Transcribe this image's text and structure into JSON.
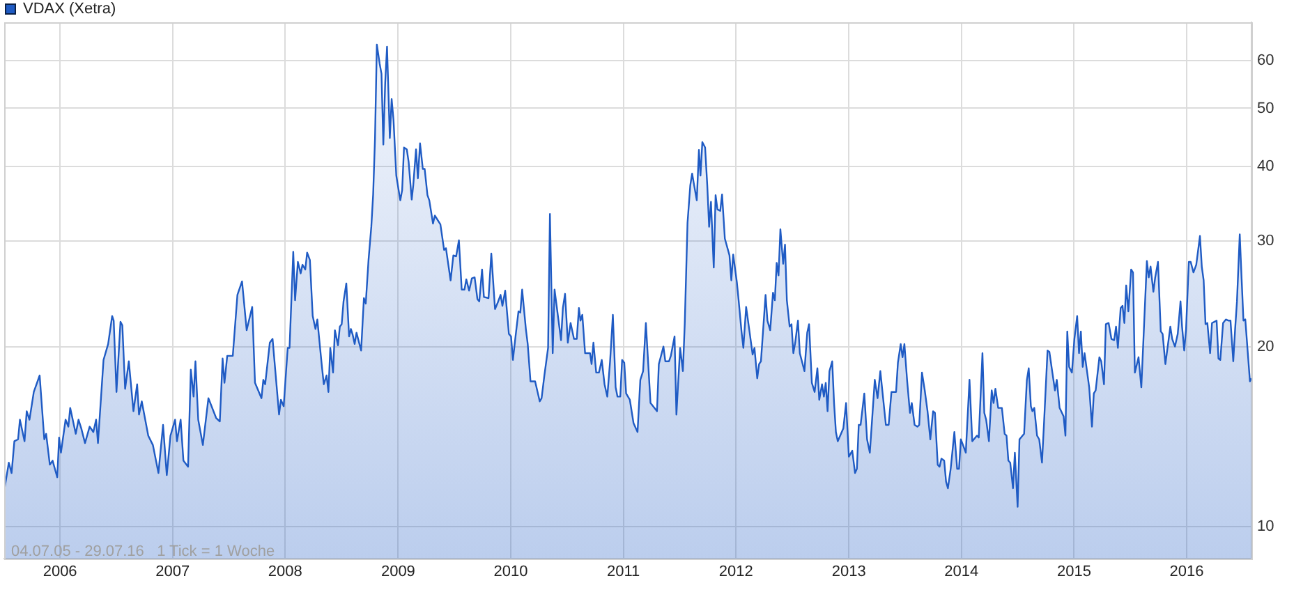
{
  "chart_data": {
    "type": "area",
    "x": [
      "2005-07-04",
      "2005-07-19",
      "2005-07-28",
      "2005-08-06",
      "2005-08-18",
      "2005-08-24",
      "2005-09-08",
      "2005-09-15",
      "2005-09-24",
      "2005-10-08",
      "2005-10-27",
      "2005-11-11",
      "2005-11-17",
      "2005-11-29",
      "2005-12-08",
      "2005-12-23",
      "2005-12-29",
      "2006-01-04",
      "2006-01-19",
      "2006-01-28",
      "2006-02-03",
      "2006-02-21",
      "2006-03-02",
      "2006-03-11",
      "2006-03-23",
      "2006-04-07",
      "2006-04-19",
      "2006-04-28",
      "2006-05-04",
      "2006-05-22",
      "2006-06-06",
      "2006-06-19",
      "2006-06-24",
      "2006-07-03",
      "2006-07-16",
      "2006-07-22",
      "2006-07-31",
      "2006-08-12",
      "2006-08-27",
      "2006-09-08",
      "2006-09-14",
      "2006-09-23",
      "2006-10-14",
      "2006-10-29",
      "2006-11-16",
      "2006-12-01",
      "2006-12-13",
      "2006-12-25",
      "2007-01-09",
      "2007-01-15",
      "2007-01-27",
      "2007-02-05",
      "2007-02-20",
      "2007-03-01",
      "2007-03-10",
      "2007-03-16",
      "2007-03-25",
      "2007-04-09",
      "2007-04-27",
      "2007-05-22",
      "2007-06-03",
      "2007-06-12",
      "2007-06-18",
      "2007-06-27",
      "2007-07-15",
      "2007-07-30",
      "2007-08-14",
      "2007-08-29",
      "2007-09-16",
      "2007-09-25",
      "2007-10-16",
      "2007-10-22",
      "2007-10-28",
      "2007-11-12",
      "2007-11-21",
      "2007-12-12",
      "2007-12-18",
      "2007-12-27",
      "2008-01-09",
      "2008-01-15",
      "2008-01-27",
      "2008-02-02",
      "2008-02-11",
      "2008-02-20",
      "2008-02-26",
      "2008-03-06",
      "2008-03-12",
      "2008-03-21",
      "2008-03-30",
      "2008-04-08",
      "2008-04-14",
      "2008-04-29",
      "2008-05-05",
      "2008-05-14",
      "2008-05-20",
      "2008-05-26",
      "2008-06-04",
      "2008-06-10",
      "2008-06-20",
      "2008-06-26",
      "2008-07-02",
      "2008-07-08",
      "2008-07-17",
      "2008-07-26",
      "2008-08-01",
      "2008-08-07",
      "2008-08-13",
      "2008-08-19",
      "2008-09-03",
      "2008-09-12",
      "2008-09-18",
      "2008-09-27",
      "2008-10-06",
      "2008-10-12",
      "2008-10-18",
      "2008-10-24",
      "2008-11-02",
      "2008-11-08",
      "2008-11-14",
      "2008-11-20",
      "2008-11-26",
      "2008-12-05",
      "2008-12-11",
      "2008-12-17",
      "2008-12-26",
      "2009-01-08",
      "2009-01-14",
      "2009-01-20",
      "2009-01-29",
      "2009-02-04",
      "2009-02-14",
      "2009-02-19",
      "2009-02-28",
      "2009-03-06",
      "2009-03-13",
      "2009-03-22",
      "2009-03-28",
      "2009-04-06",
      "2009-04-12",
      "2009-04-24",
      "2009-04-30",
      "2009-05-18",
      "2009-05-30",
      "2009-06-05",
      "2009-06-20",
      "2009-06-29",
      "2009-07-08",
      "2009-07-17",
      "2009-07-26",
      "2009-08-04",
      "2009-08-10",
      "2009-08-19",
      "2009-08-28",
      "2009-09-06",
      "2009-09-15",
      "2009-09-21",
      "2009-09-30",
      "2009-10-06",
      "2009-10-21",
      "2009-10-30",
      "2009-11-11",
      "2009-11-20",
      "2009-11-29",
      "2009-12-05",
      "2009-12-14",
      "2009-12-26",
      "2010-01-02",
      "2010-01-08",
      "2010-01-17",
      "2010-01-26",
      "2010-02-01",
      "2010-02-07",
      "2010-02-19",
      "2010-02-25",
      "2010-03-06",
      "2010-03-21",
      "2010-04-05",
      "2010-04-11",
      "2010-04-20",
      "2010-05-02",
      "2010-05-08",
      "2010-05-17",
      "2010-05-23",
      "2010-06-13",
      "2010-06-19",
      "2010-06-26",
      "2010-07-05",
      "2010-07-14",
      "2010-07-25",
      "2010-08-03",
      "2010-08-10",
      "2010-08-15",
      "2010-08-21",
      "2010-08-30",
      "2010-09-15",
      "2010-09-20",
      "2010-09-26",
      "2010-10-05",
      "2010-10-14",
      "2010-10-23",
      "2010-11-01",
      "2010-11-10",
      "2010-11-19",
      "2010-11-28",
      "2010-12-07",
      "2010-12-13",
      "2010-12-22",
      "2010-12-28",
      "2011-01-04",
      "2011-01-10",
      "2011-01-22",
      "2011-02-03",
      "2011-02-16",
      "2011-02-25",
      "2011-03-06",
      "2011-03-15",
      "2011-03-30",
      "2011-04-20",
      "2011-04-26",
      "2011-05-11",
      "2011-05-17",
      "2011-05-29",
      "2011-06-04",
      "2011-06-16",
      "2011-06-22",
      "2011-07-04",
      "2011-07-13",
      "2011-07-19",
      "2011-07-28",
      "2011-08-06",
      "2011-08-12",
      "2011-08-18",
      "2011-08-27",
      "2011-09-03",
      "2011-09-08",
      "2011-09-14",
      "2011-09-23",
      "2011-09-30",
      "2011-10-06",
      "2011-10-12",
      "2011-10-21",
      "2011-10-27",
      "2011-11-02",
      "2011-11-11",
      "2011-11-17",
      "2011-11-26",
      "2011-12-11",
      "2011-12-17",
      "2011-12-23",
      "2012-01-04",
      "2012-01-10",
      "2012-01-19",
      "2012-01-25",
      "2012-02-03",
      "2012-02-15",
      "2012-02-24",
      "2012-03-01",
      "2012-03-10",
      "2012-03-16",
      "2012-03-22",
      "2012-04-06",
      "2012-04-12",
      "2012-04-21",
      "2012-04-30",
      "2012-05-06",
      "2012-05-12",
      "2012-05-18",
      "2012-05-24",
      "2012-06-02",
      "2012-06-08",
      "2012-06-14",
      "2012-06-23",
      "2012-06-29",
      "2012-07-05",
      "2012-07-11",
      "2012-07-20",
      "2012-07-26",
      "2012-08-10",
      "2012-08-19",
      "2012-08-25",
      "2012-09-03",
      "2012-09-12",
      "2012-09-21",
      "2012-09-27",
      "2012-10-06",
      "2012-10-12",
      "2012-10-18",
      "2012-10-24",
      "2012-10-30",
      "2012-11-08",
      "2012-11-14",
      "2012-11-20",
      "2012-11-26",
      "2012-12-14",
      "2012-12-23",
      "2013-01-01",
      "2013-01-12",
      "2013-01-21",
      "2013-01-27",
      "2013-02-02",
      "2013-02-08",
      "2013-02-20",
      "2013-03-01",
      "2013-03-10",
      "2013-03-26",
      "2013-04-04",
      "2013-04-13",
      "2013-04-22",
      "2013-05-01",
      "2013-05-10",
      "2013-05-19",
      "2013-06-03",
      "2013-06-09",
      "2013-06-18",
      "2013-06-24",
      "2013-06-30",
      "2013-07-09",
      "2013-07-18",
      "2013-07-24",
      "2013-08-02",
      "2013-08-11",
      "2013-08-17",
      "2013-08-26",
      "2013-09-04",
      "2013-09-13",
      "2013-09-22",
      "2013-10-01",
      "2013-10-07",
      "2013-10-16",
      "2013-10-22",
      "2013-10-28",
      "2013-11-06",
      "2013-11-12",
      "2013-11-18",
      "2013-11-27",
      "2013-12-09",
      "2013-12-18",
      "2013-12-24",
      "2013-12-30",
      "2014-01-06",
      "2014-01-15",
      "2014-01-27",
      "2014-02-05",
      "2014-02-20",
      "2014-02-26",
      "2014-03-10",
      "2014-03-16",
      "2014-03-22",
      "2014-03-31",
      "2014-04-09",
      "2014-04-15",
      "2014-04-21",
      "2014-04-30",
      "2014-05-12",
      "2014-05-21",
      "2014-05-27",
      "2014-06-02",
      "2014-06-08",
      "2014-06-17",
      "2014-06-23",
      "2014-07-02",
      "2014-07-08",
      "2014-07-23",
      "2014-08-01",
      "2014-08-07",
      "2014-08-14",
      "2014-08-19",
      "2014-08-25",
      "2014-09-03",
      "2014-09-10",
      "2014-09-19",
      "2014-09-25",
      "2014-10-07",
      "2014-10-13",
      "2014-10-22",
      "2014-10-31",
      "2014-11-06",
      "2014-11-15",
      "2014-11-28",
      "2014-12-04",
      "2014-12-10",
      "2014-12-16",
      "2014-12-25",
      "2015-01-02",
      "2015-01-11",
      "2015-01-17",
      "2015-01-23",
      "2015-01-29",
      "2015-02-04",
      "2015-02-19",
      "2015-02-28",
      "2015-03-06",
      "2015-03-12",
      "2015-03-24",
      "2015-03-30",
      "2015-04-08",
      "2015-04-14",
      "2015-04-23",
      "2015-05-02",
      "2015-05-11",
      "2015-05-17",
      "2015-05-23",
      "2015-06-01",
      "2015-06-07",
      "2015-06-13",
      "2015-06-19",
      "2015-06-26",
      "2015-07-05",
      "2015-07-11",
      "2015-07-17",
      "2015-07-29",
      "2015-08-07",
      "2015-08-16",
      "2015-08-25",
      "2015-08-31",
      "2015-09-06",
      "2015-09-15",
      "2015-09-21",
      "2015-09-30",
      "2015-10-09",
      "2015-10-15",
      "2015-10-24",
      "2015-11-09",
      "2015-11-15",
      "2015-11-24",
      "2015-12-03",
      "2015-12-12",
      "2015-12-17",
      "2015-12-24",
      "2015-12-30",
      "2016-01-08",
      "2016-01-14",
      "2016-01-23",
      "2016-02-01",
      "2016-02-13",
      "2016-02-19",
      "2016-02-25",
      "2016-03-02",
      "2016-03-08",
      "2016-03-17",
      "2016-03-23",
      "2016-04-07",
      "2016-04-13",
      "2016-04-19",
      "2016-04-28",
      "2016-05-07",
      "2016-05-16",
      "2016-05-22",
      "2016-05-31",
      "2016-06-06",
      "2016-06-12",
      "2016-06-21",
      "2016-06-27",
      "2016-07-03",
      "2016-07-09",
      "2016-07-24",
      "2016-07-29"
    ],
    "series": [
      {
        "name": "VDAX (Xetra)",
        "color": "#1f5bc4",
        "values": [
          11.5,
          12.8,
          12.3,
          13.9,
          14.0,
          15.1,
          13.9,
          15.6,
          15.1,
          16.8,
          17.9,
          14.0,
          14.3,
          12.7,
          12.9,
          12.1,
          14.1,
          13.3,
          15.1,
          14.7,
          15.8,
          14.3,
          15.1,
          14.6,
          13.8,
          14.7,
          14.4,
          15.1,
          13.8,
          19.0,
          20.2,
          22.5,
          22.1,
          16.8,
          22.0,
          21.7,
          17.0,
          18.9,
          15.6,
          17.3,
          15.4,
          16.2,
          14.2,
          13.7,
          12.3,
          14.8,
          12.2,
          14.2,
          15.1,
          13.9,
          15.1,
          12.9,
          12.6,
          18.3,
          16.5,
          18.9,
          15.1,
          13.7,
          16.4,
          15.2,
          15.0,
          19.1,
          17.4,
          19.3,
          19.3,
          24.4,
          25.7,
          21.3,
          23.3,
          17.4,
          16.4,
          17.6,
          17.3,
          20.3,
          20.6,
          15.4,
          16.3,
          15.9,
          19.9,
          19.9,
          28.8,
          23.9,
          27.7,
          26.5,
          27.4,
          26.9,
          28.7,
          27.9,
          22.5,
          21.4,
          22.2,
          18.5,
          17.3,
          17.9,
          16.8,
          19.9,
          18.1,
          21.3,
          20.1,
          21.6,
          21.8,
          23.8,
          25.5,
          20.8,
          21.4,
          20.9,
          20.2,
          21.1,
          19.7,
          24.1,
          23.6,
          27.9,
          31.7,
          35.9,
          44.5,
          63.9,
          59.4,
          57.1,
          43.5,
          55.1,
          63.4,
          44.6,
          51.8,
          47.8,
          38.6,
          35.1,
          36.5,
          43.0,
          42.7,
          40.7,
          35.2,
          37.2,
          42.7,
          38.2,
          43.7,
          39.6,
          39.6,
          35.8,
          35.1,
          32.1,
          33.1,
          32.0,
          29.0,
          29.2,
          25.8,
          28.4,
          28.3,
          30.1,
          24.9,
          24.9,
          25.9,
          24.8,
          26.0,
          26.1,
          24.0,
          23.8,
          26.9,
          24.2,
          24.1,
          28.6,
          23.1,
          23.7,
          24.4,
          23.4,
          24.8,
          21.0,
          20.8,
          19.0,
          20.9,
          22.9,
          22.8,
          24.9,
          21.4,
          20.2,
          17.5,
          17.5,
          16.2,
          16.4,
          17.9,
          19.9,
          33.3,
          19.5,
          24.9,
          20.5,
          23.2,
          24.5,
          20.3,
          21.9,
          20.6,
          20.6,
          23.2,
          22.1,
          22.6,
          19.5,
          19.5,
          18.7,
          20.3,
          18.1,
          18.1,
          19.0,
          17.3,
          16.5,
          18.9,
          22.6,
          17.1,
          16.5,
          16.5,
          19.0,
          18.8,
          16.7,
          16.3,
          14.9,
          14.4,
          17.6,
          18.2,
          21.9,
          16.1,
          15.6,
          18.7,
          20.0,
          18.9,
          18.9,
          19.3,
          20.8,
          15.4,
          19.9,
          18.2,
          21.8,
          32.2,
          37.2,
          38.9,
          37.3,
          35.1,
          42.6,
          38.6,
          43.9,
          43.0,
          37.2,
          31.7,
          34.9,
          27.1,
          35.8,
          33.9,
          33.7,
          35.9,
          30.3,
          28.4,
          25.8,
          28.5,
          25.6,
          23.8,
          21.2,
          19.9,
          23.3,
          21.0,
          19.4,
          19.9,
          17.7,
          18.7,
          18.9,
          24.4,
          22.1,
          21.3,
          24.6,
          23.9,
          27.6,
          26.3,
          31.4,
          27.5,
          29.6,
          23.9,
          21.6,
          21.8,
          19.5,
          20.3,
          22.1,
          19.5,
          18.2,
          21.1,
          21.8,
          17.4,
          16.8,
          18.4,
          16.3,
          17.3,
          16.5,
          17.4,
          15.6,
          18.2,
          18.9,
          16.1,
          14.4,
          13.9,
          14.6,
          16.1,
          13.1,
          13.4,
          12.3,
          12.5,
          14.8,
          14.8,
          16.7,
          14.0,
          13.3,
          17.6,
          16.4,
          18.2,
          16.4,
          14.8,
          14.8,
          16.8,
          16.8,
          18.8,
          20.2,
          19.2,
          20.2,
          17.5,
          15.5,
          16.1,
          14.8,
          14.7,
          14.8,
          18.1,
          16.9,
          15.6,
          14.0,
          15.6,
          15.5,
          12.7,
          12.6,
          13.0,
          12.9,
          11.9,
          11.6,
          12.5,
          14.4,
          12.5,
          12.5,
          14.0,
          13.7,
          13.3,
          17.6,
          13.9,
          14.2,
          14.1,
          19.5,
          15.5,
          15.1,
          13.9,
          16.9,
          16.1,
          17.0,
          15.8,
          15.8,
          14.3,
          14.2,
          12.9,
          12.8,
          11.6,
          13.3,
          10.8,
          14.0,
          14.3,
          17.6,
          18.4,
          15.9,
          15.6,
          15.8,
          14.2,
          14.0,
          12.8,
          14.7,
          19.7,
          19.6,
          18.2,
          16.9,
          17.6,
          15.8,
          15.3,
          14.2,
          21.2,
          18.5,
          18.1,
          20.6,
          22.5,
          19.5,
          21.2,
          18.5,
          19.5,
          17.1,
          14.7,
          16.7,
          16.9,
          19.2,
          18.9,
          17.3,
          21.8,
          21.9,
          20.6,
          20.5,
          21.6,
          19.9,
          23.2,
          23.4,
          21.9,
          25.3,
          22.9,
          26.9,
          26.6,
          18.1,
          19.2,
          17.1,
          21.8,
          27.8,
          26.1,
          27.2,
          24.7,
          26.1,
          27.7,
          21.2,
          21.0,
          18.7,
          21.6,
          20.6,
          20.0,
          21.0,
          23.8,
          21.6,
          19.7,
          21.4,
          27.7,
          27.7,
          26.6,
          27.4,
          30.6,
          27.2,
          25.8,
          21.8,
          21.9,
          19.5,
          21.9,
          22.1,
          19.1,
          19.0,
          21.9,
          22.2,
          22.1,
          22.1,
          18.9,
          21.4,
          23.8,
          30.8,
          26.0,
          22.1,
          22.2,
          17.5,
          17.7
        ]
      }
    ],
    "xlim": [
      "2005-07-04",
      "2016-07-29"
    ],
    "xticks": [
      "2006",
      "2007",
      "2008",
      "2009",
      "2010",
      "2011",
      "2012",
      "2013",
      "2014",
      "2015",
      "2016"
    ],
    "ylim": [
      8.85,
      69.6
    ],
    "yticks": [
      10,
      20,
      30,
      40,
      50,
      60
    ],
    "log": true,
    "grid": true,
    "legend": "top left",
    "marker": "none",
    "annotations": [
      "04.07.05 - 29.07.16   1 Tick = 1 Woche"
    ]
  }
}
